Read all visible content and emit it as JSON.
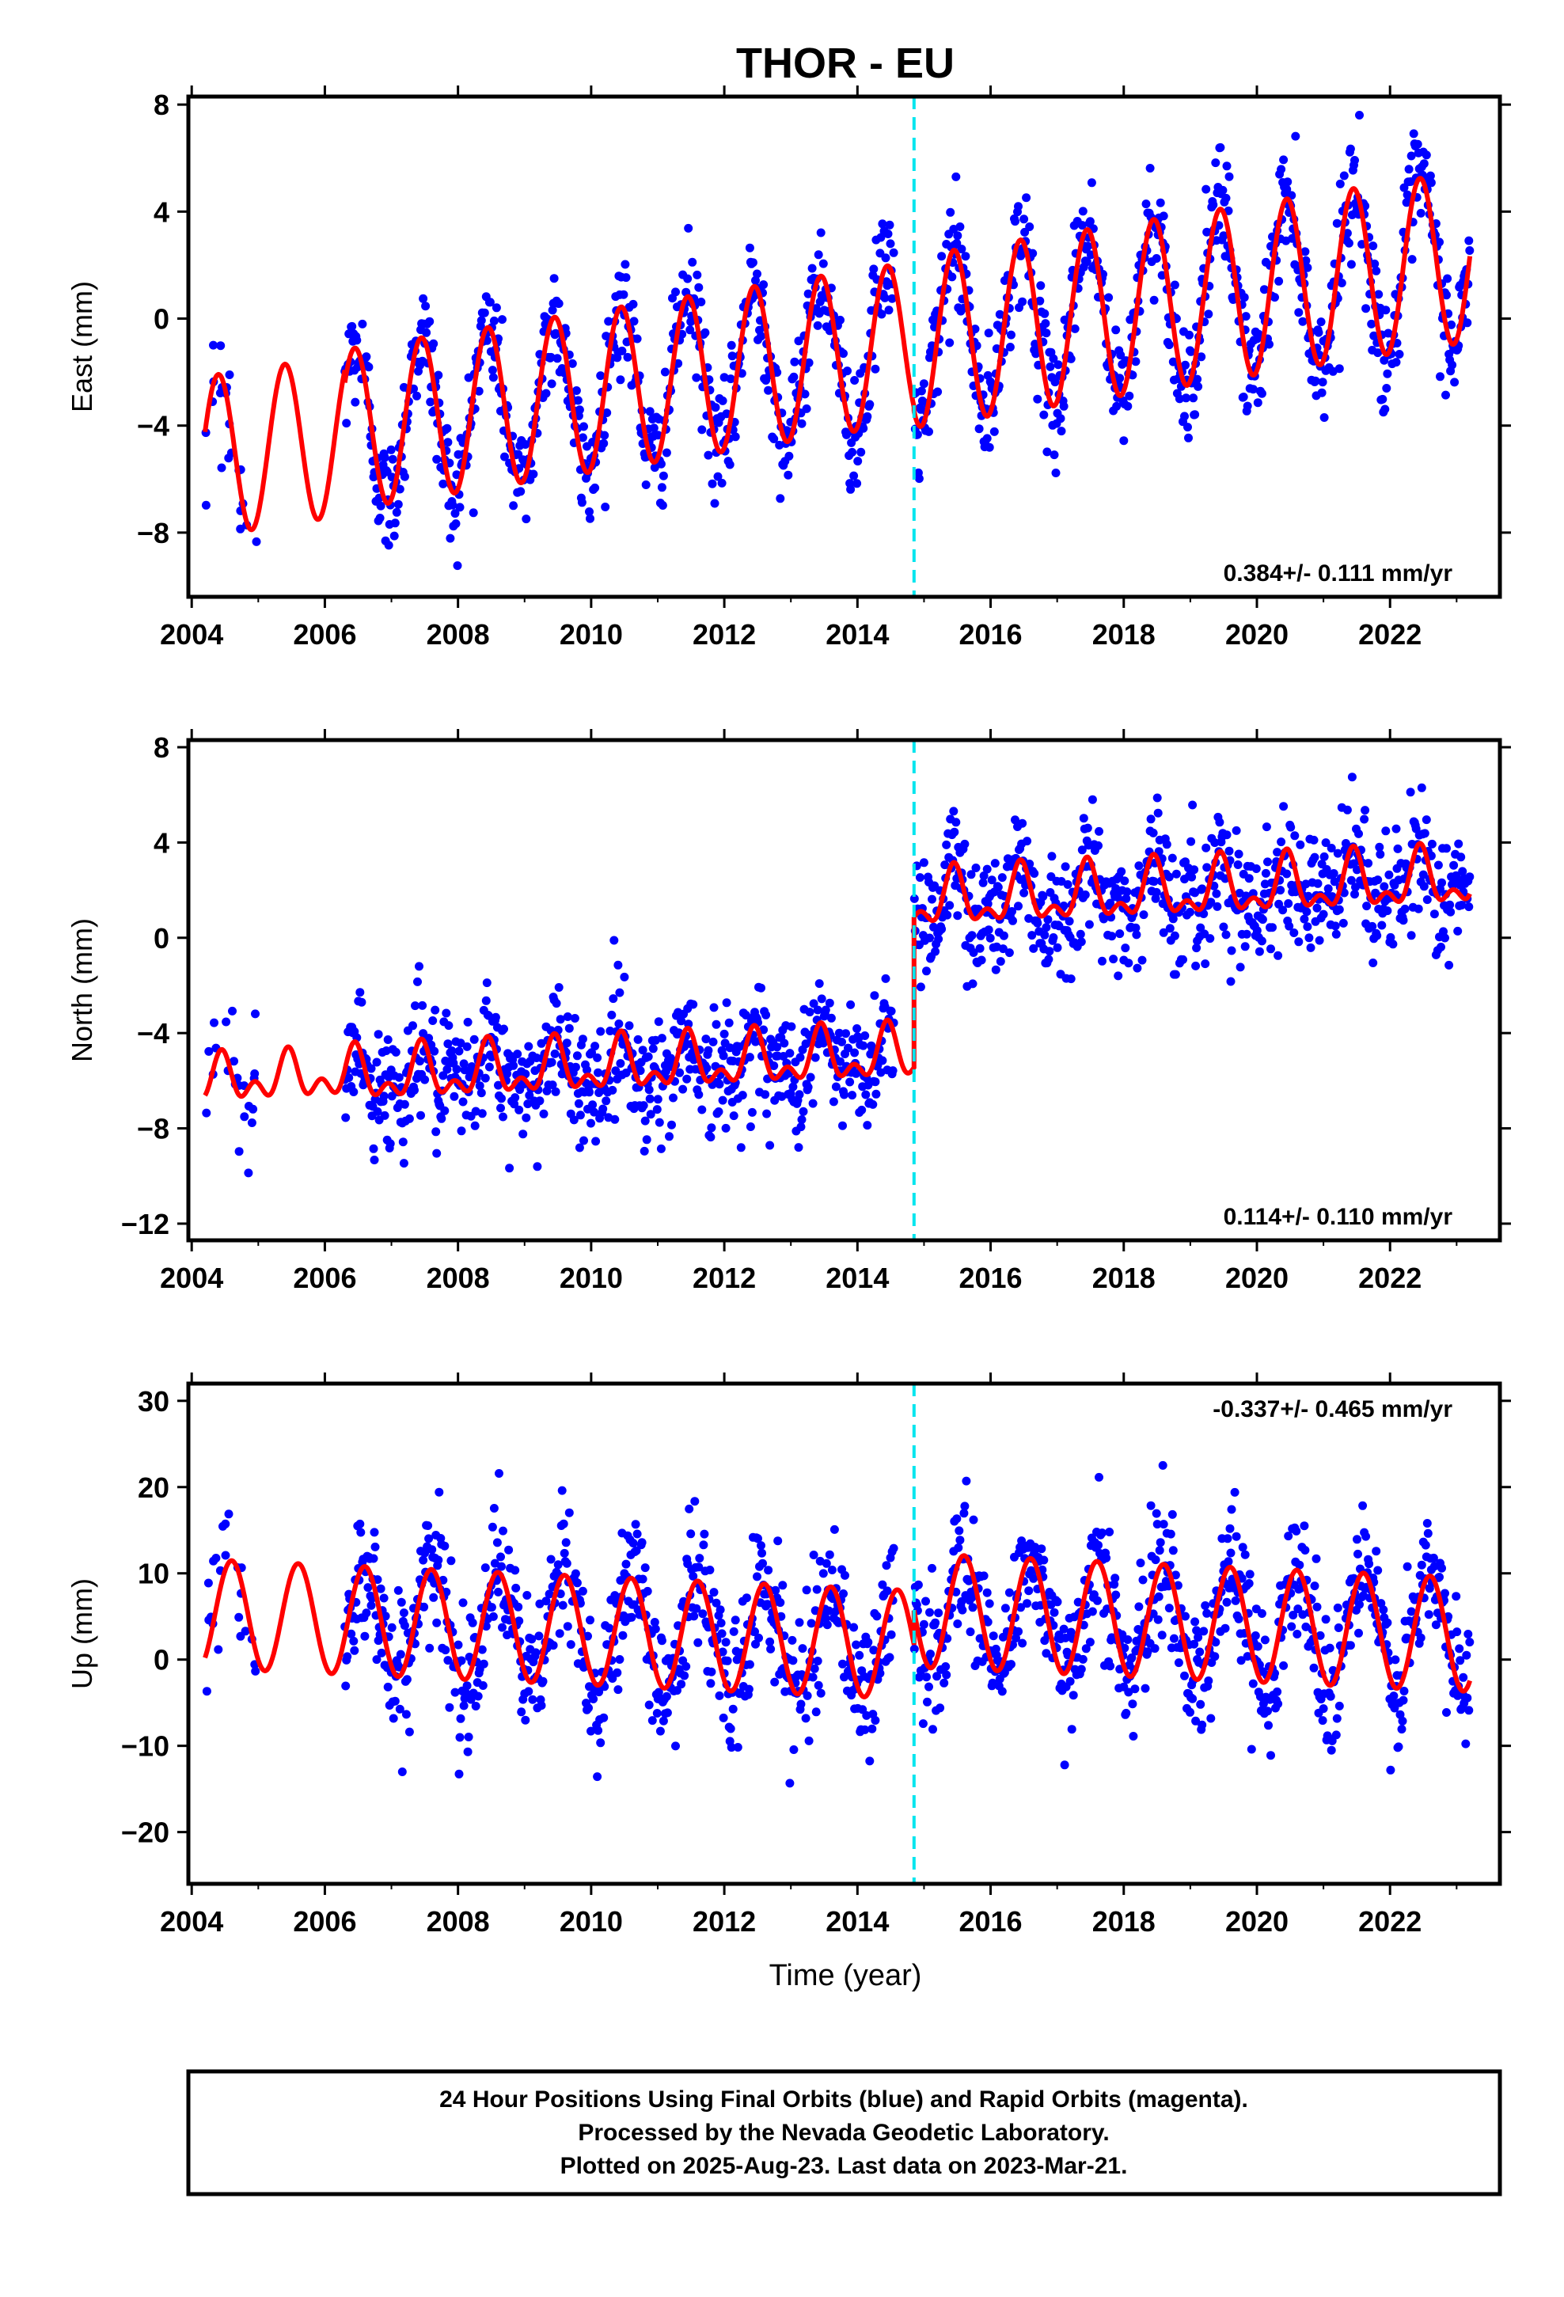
{
  "chart_data": {
    "type": "scatter",
    "title": "THOR - EU",
    "xlabel": "Time (year)",
    "xlim": [
      2003.95,
      2023.65
    ],
    "x_ticks": [
      2004,
      2006,
      2008,
      2010,
      2012,
      2014,
      2016,
      2018,
      2020,
      2022
    ],
    "x_tick_labels": [
      "2004",
      "2006",
      "2008",
      "2010",
      "2012",
      "2014",
      "2016",
      "2018",
      "2020",
      "2022"
    ],
    "step_epoch": 2014.85,
    "series_colors": {
      "observed": "#0000ff",
      "model": "#ff0000",
      "step": "#00e5ee"
    },
    "panels": [
      {
        "component": "east",
        "ylabel": "East (mm)",
        "ylim": [
          -10.4,
          8.3
        ],
        "y_ticks": [
          8,
          4,
          0,
          -4,
          -8
        ],
        "y_tick_labels": [
          "8",
          "4",
          "0",
          "−4",
          "−8"
        ],
        "rate_label": "0.384+/- 0.111 mm/yr",
        "rate_position": "bottom-right",
        "model_segments": [
          {
            "x_start": 2004.2,
            "x_end": 2006.3,
            "offset": -1.4,
            "trend": 0.384,
            "annual_amplitude": 3.0,
            "annual_peak": 0.4,
            "semiannual_amplitude": 0.0
          },
          {
            "x_start": 2006.3,
            "x_end": 2014.85,
            "offset": -1.2,
            "trend": 0.384,
            "annual_amplitude": 3.0,
            "annual_peak": 0.45,
            "semiannual_amplitude": 0.0
          },
          {
            "x_start": 2014.85,
            "x_end": 2023.2,
            "offset": -1.2,
            "trend": 0.384,
            "annual_amplitude": 3.2,
            "annual_peak": 0.45,
            "semiannual_amplitude": 0.0
          }
        ],
        "scatter_summary": {
          "x_start": 2006.3,
          "x_end": 2023.2,
          "noise_sd_mm": 1.1,
          "sparse_early": [
            2004.2,
            2005.0
          ]
        }
      },
      {
        "component": "north",
        "ylabel": "North (mm)",
        "ylim": [
          -12.7,
          8.3
        ],
        "y_ticks": [
          8,
          4,
          0,
          -4,
          -8,
          -12
        ],
        "y_tick_labels": [
          "8",
          "4",
          "0",
          "−4",
          "−8",
          "−12"
        ],
        "rate_label": "0.114+/- 0.110 mm/yr",
        "rate_position": "bottom-right",
        "model_segments": [
          {
            "x_start": 2004.2,
            "x_end": 2006.3,
            "offset": -4.9,
            "trend": 0.114,
            "annual_amplitude": 0.7,
            "annual_peak": 0.45,
            "semiannual_amplitude": 0.6
          },
          {
            "x_start": 2006.3,
            "x_end": 2014.85,
            "offset": -5.0,
            "trend": 0.114,
            "annual_amplitude": 0.9,
            "annual_peak": 0.45,
            "semiannual_amplitude": 0.6
          },
          {
            "x_start": 2014.85,
            "x_end": 2023.2,
            "offset": 1.4,
            "trend": 0.114,
            "annual_amplitude": 1.0,
            "annual_peak": 0.45,
            "semiannual_amplitude": 0.6
          }
        ],
        "scatter_summary": {
          "x_start": 2006.3,
          "x_end": 2023.2,
          "noise_sd_mm": 1.3,
          "sparse_early": [
            2004.2,
            2005.0
          ]
        }
      },
      {
        "component": "up",
        "ylabel": "Up (mm)",
        "ylim": [
          -26,
          32
        ],
        "y_ticks": [
          30,
          20,
          10,
          0,
          -10,
          -20
        ],
        "y_tick_labels": [
          "30",
          "20",
          "10",
          "0",
          "−10",
          "−20"
        ],
        "rate_label": "-0.337+/- 0.465 mm/yr",
        "rate_position": "top-right",
        "model_segments": [
          {
            "x_start": 2004.2,
            "x_end": 2006.3,
            "offset": 2.0,
            "trend": -0.337,
            "annual_amplitude": 6.3,
            "annual_peak": 0.6,
            "semiannual_amplitude": 0.0
          },
          {
            "x_start": 2006.3,
            "x_end": 2014.85,
            "offset": 2.0,
            "trend": -0.337,
            "annual_amplitude": 6.3,
            "annual_peak": 0.6,
            "semiannual_amplitude": 0.0
          },
          {
            "x_start": 2014.85,
            "x_end": 2023.2,
            "offset": 6.0,
            "trend": -0.337,
            "annual_amplitude": 6.6,
            "annual_peak": 0.6,
            "semiannual_amplitude": 0.0
          }
        ],
        "scatter_summary": {
          "x_start": 2006.3,
          "x_end": 2023.2,
          "noise_sd_mm": 4.0,
          "sparse_early": [
            2004.2,
            2005.0
          ]
        }
      }
    ]
  },
  "footer": {
    "line1": "24 Hour Positions Using Final Orbits (blue) and Rapid Orbits (magenta).",
    "line2": "Processed by the Nevada Geodetic Laboratory.",
    "line3": "Plotted on 2025-Aug-23. Last data on 2023-Mar-21."
  }
}
